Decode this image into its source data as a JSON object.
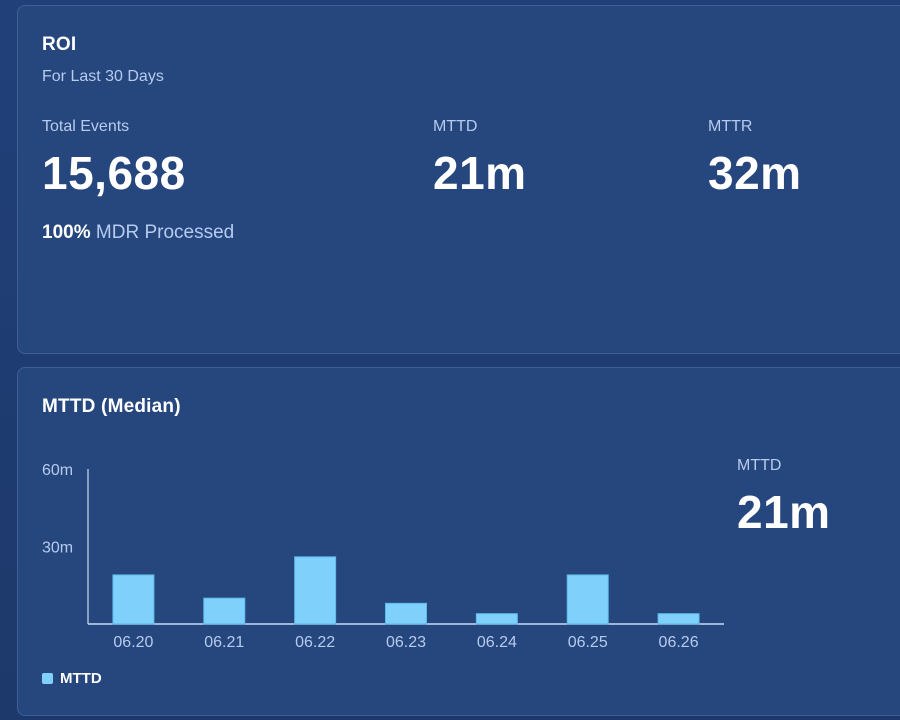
{
  "roi": {
    "title": "ROI",
    "subtitle": "For Last 30 Days",
    "total_events_label": "Total Events",
    "total_events_value": "15,688",
    "mttd_label": "MTTD",
    "mttd_value": "21m",
    "mttr_label": "MTTR",
    "mttr_value": "32m",
    "processed_percent": "100%",
    "processed_text": "MDR Processed"
  },
  "mttd_panel": {
    "title": "MTTD (Median)",
    "side_label": "MTTD",
    "side_value": "21m"
  },
  "colors": {
    "bar": "#7fd1fb",
    "axis": "#c9daf5",
    "card": "#26467e"
  },
  "chart_data": {
    "type": "bar",
    "title": "MTTD (Median)",
    "categories": [
      "06.20",
      "06.21",
      "06.22",
      "06.23",
      "06.24",
      "06.25",
      "06.26"
    ],
    "series": [
      {
        "name": "MTTD",
        "values": [
          19,
          10,
          26,
          8,
          4,
          19,
          4
        ]
      }
    ],
    "y_ticks": [
      {
        "value": 30,
        "label": "30m"
      },
      {
        "value": 60,
        "label": "60m"
      }
    ],
    "ylim": [
      0,
      60
    ],
    "xlabel": "",
    "ylabel": "",
    "grid": false,
    "legend": "bottom-left"
  }
}
